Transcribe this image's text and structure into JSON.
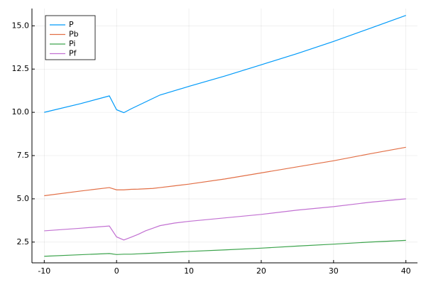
{
  "chart_data": {
    "type": "line",
    "x": [
      -10,
      -5,
      -1,
      0,
      1,
      2,
      3,
      4,
      5,
      6,
      8,
      10,
      15,
      20,
      25,
      30,
      35,
      40
    ],
    "series": [
      {
        "name": "P",
        "color": "#009af9",
        "values": [
          10.0,
          10.5,
          10.95,
          10.15,
          9.98,
          10.2,
          10.4,
          10.6,
          10.8,
          11.0,
          11.25,
          11.5,
          12.1,
          12.75,
          13.4,
          14.1,
          14.85,
          15.6
        ]
      },
      {
        "name": "Pb",
        "color": "#e26f46",
        "values": [
          5.18,
          5.45,
          5.65,
          5.52,
          5.52,
          5.55,
          5.56,
          5.58,
          5.6,
          5.65,
          5.75,
          5.85,
          6.15,
          6.5,
          6.85,
          7.2,
          7.6,
          7.98
        ]
      },
      {
        "name": "Pi",
        "color": "#3da44d",
        "values": [
          1.68,
          1.77,
          1.84,
          1.78,
          1.8,
          1.8,
          1.82,
          1.84,
          1.86,
          1.88,
          1.92,
          1.96,
          2.05,
          2.15,
          2.27,
          2.38,
          2.5,
          2.6
        ]
      },
      {
        "name": "Pf",
        "color": "#c271d2",
        "values": [
          3.15,
          3.3,
          3.43,
          2.8,
          2.62,
          2.78,
          2.95,
          3.15,
          3.3,
          3.45,
          3.6,
          3.7,
          3.9,
          4.1,
          4.35,
          4.55,
          4.8,
          5.0
        ]
      }
    ],
    "xlim": [
      -11.7,
      41.6
    ],
    "xticks": [
      -10,
      0,
      10,
      20,
      30,
      40
    ],
    "ylim": [
      1.3,
      16.0
    ],
    "yticks": [
      2.5,
      {
        "value": 5,
        "label": "5.0"
      },
      7.5,
      {
        "value": 10,
        "label": "10.0"
      },
      12.5,
      {
        "value": 15,
        "label": "15.0"
      }
    ],
    "grid": true,
    "legend": "top-left"
  }
}
